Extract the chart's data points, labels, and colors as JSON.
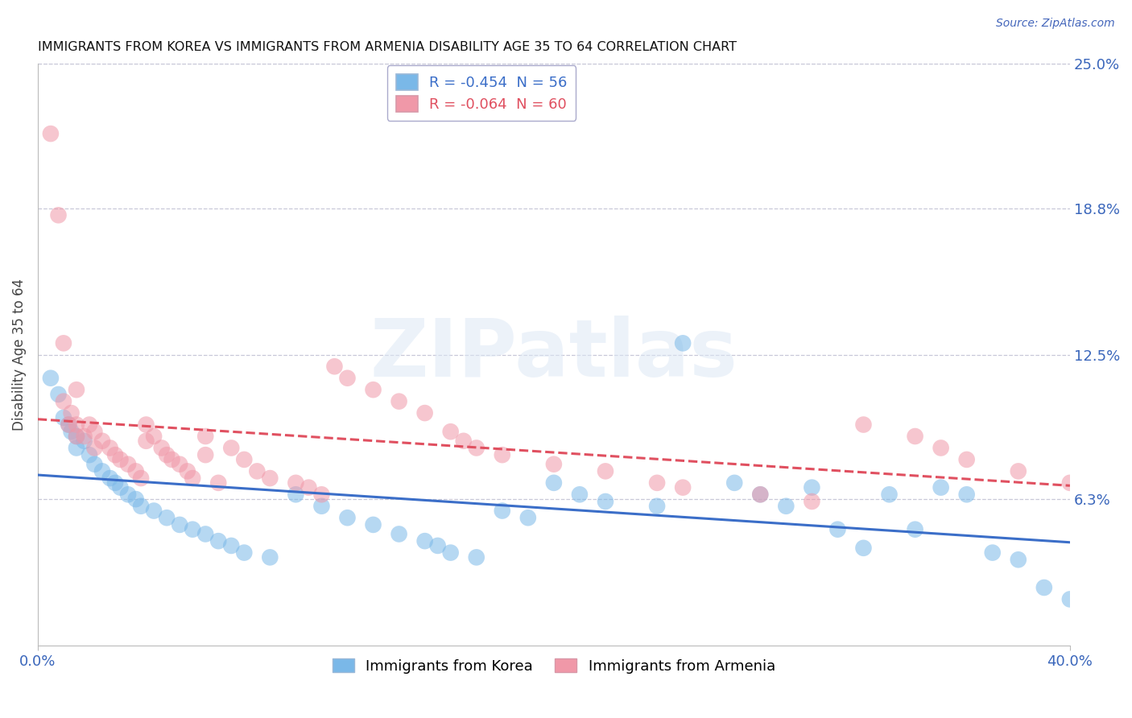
{
  "title": "IMMIGRANTS FROM KOREA VS IMMIGRANTS FROM ARMENIA DISABILITY AGE 35 TO 64 CORRELATION CHART",
  "source": "Source: ZipAtlas.com",
  "ylabel": "Disability Age 35 to 64",
  "xlim": [
    0.0,
    0.4
  ],
  "ylim": [
    0.0,
    0.25
  ],
  "ytick_vals_right": [
    0.25,
    0.188,
    0.125,
    0.063
  ],
  "korea_color": "#7ab8e8",
  "armenia_color": "#f098a8",
  "korea_line_color": "#3b6ec8",
  "armenia_line_color": "#e05060",
  "watermark_text": "ZIPatlas",
  "korea_R": -0.454,
  "korea_N": 56,
  "armenia_R": -0.064,
  "armenia_N": 60,
  "korea_scatter_x": [
    0.005,
    0.008,
    0.01,
    0.012,
    0.013,
    0.015,
    0.015,
    0.018,
    0.02,
    0.022,
    0.025,
    0.028,
    0.03,
    0.032,
    0.035,
    0.038,
    0.04,
    0.045,
    0.05,
    0.055,
    0.06,
    0.065,
    0.07,
    0.075,
    0.08,
    0.09,
    0.1,
    0.11,
    0.12,
    0.13,
    0.14,
    0.15,
    0.155,
    0.16,
    0.17,
    0.18,
    0.19,
    0.2,
    0.21,
    0.22,
    0.24,
    0.25,
    0.27,
    0.28,
    0.29,
    0.3,
    0.31,
    0.32,
    0.33,
    0.34,
    0.35,
    0.36,
    0.37,
    0.38,
    0.39,
    0.4
  ],
  "korea_scatter_y": [
    0.115,
    0.108,
    0.098,
    0.095,
    0.092,
    0.09,
    0.085,
    0.088,
    0.082,
    0.078,
    0.075,
    0.072,
    0.07,
    0.068,
    0.065,
    0.063,
    0.06,
    0.058,
    0.055,
    0.052,
    0.05,
    0.048,
    0.045,
    0.043,
    0.04,
    0.038,
    0.065,
    0.06,
    0.055,
    0.052,
    0.048,
    0.045,
    0.043,
    0.04,
    0.038,
    0.058,
    0.055,
    0.07,
    0.065,
    0.062,
    0.06,
    0.13,
    0.07,
    0.065,
    0.06,
    0.068,
    0.05,
    0.042,
    0.065,
    0.05,
    0.068,
    0.065,
    0.04,
    0.037,
    0.025,
    0.02
  ],
  "armenia_scatter_x": [
    0.005,
    0.008,
    0.01,
    0.012,
    0.013,
    0.015,
    0.015,
    0.018,
    0.02,
    0.022,
    0.022,
    0.025,
    0.028,
    0.03,
    0.032,
    0.035,
    0.038,
    0.04,
    0.042,
    0.042,
    0.045,
    0.048,
    0.05,
    0.052,
    0.055,
    0.058,
    0.06,
    0.065,
    0.065,
    0.07,
    0.075,
    0.08,
    0.085,
    0.09,
    0.1,
    0.105,
    0.11,
    0.115,
    0.12,
    0.13,
    0.14,
    0.15,
    0.16,
    0.165,
    0.17,
    0.18,
    0.2,
    0.22,
    0.24,
    0.25,
    0.28,
    0.3,
    0.32,
    0.34,
    0.35,
    0.36,
    0.38,
    0.4,
    0.01,
    0.015
  ],
  "armenia_scatter_y": [
    0.22,
    0.185,
    0.105,
    0.095,
    0.1,
    0.095,
    0.09,
    0.09,
    0.095,
    0.092,
    0.085,
    0.088,
    0.085,
    0.082,
    0.08,
    0.078,
    0.075,
    0.072,
    0.095,
    0.088,
    0.09,
    0.085,
    0.082,
    0.08,
    0.078,
    0.075,
    0.072,
    0.09,
    0.082,
    0.07,
    0.085,
    0.08,
    0.075,
    0.072,
    0.07,
    0.068,
    0.065,
    0.12,
    0.115,
    0.11,
    0.105,
    0.1,
    0.092,
    0.088,
    0.085,
    0.082,
    0.078,
    0.075,
    0.07,
    0.068,
    0.065,
    0.062,
    0.095,
    0.09,
    0.085,
    0.08,
    0.075,
    0.07,
    0.13,
    0.11
  ]
}
